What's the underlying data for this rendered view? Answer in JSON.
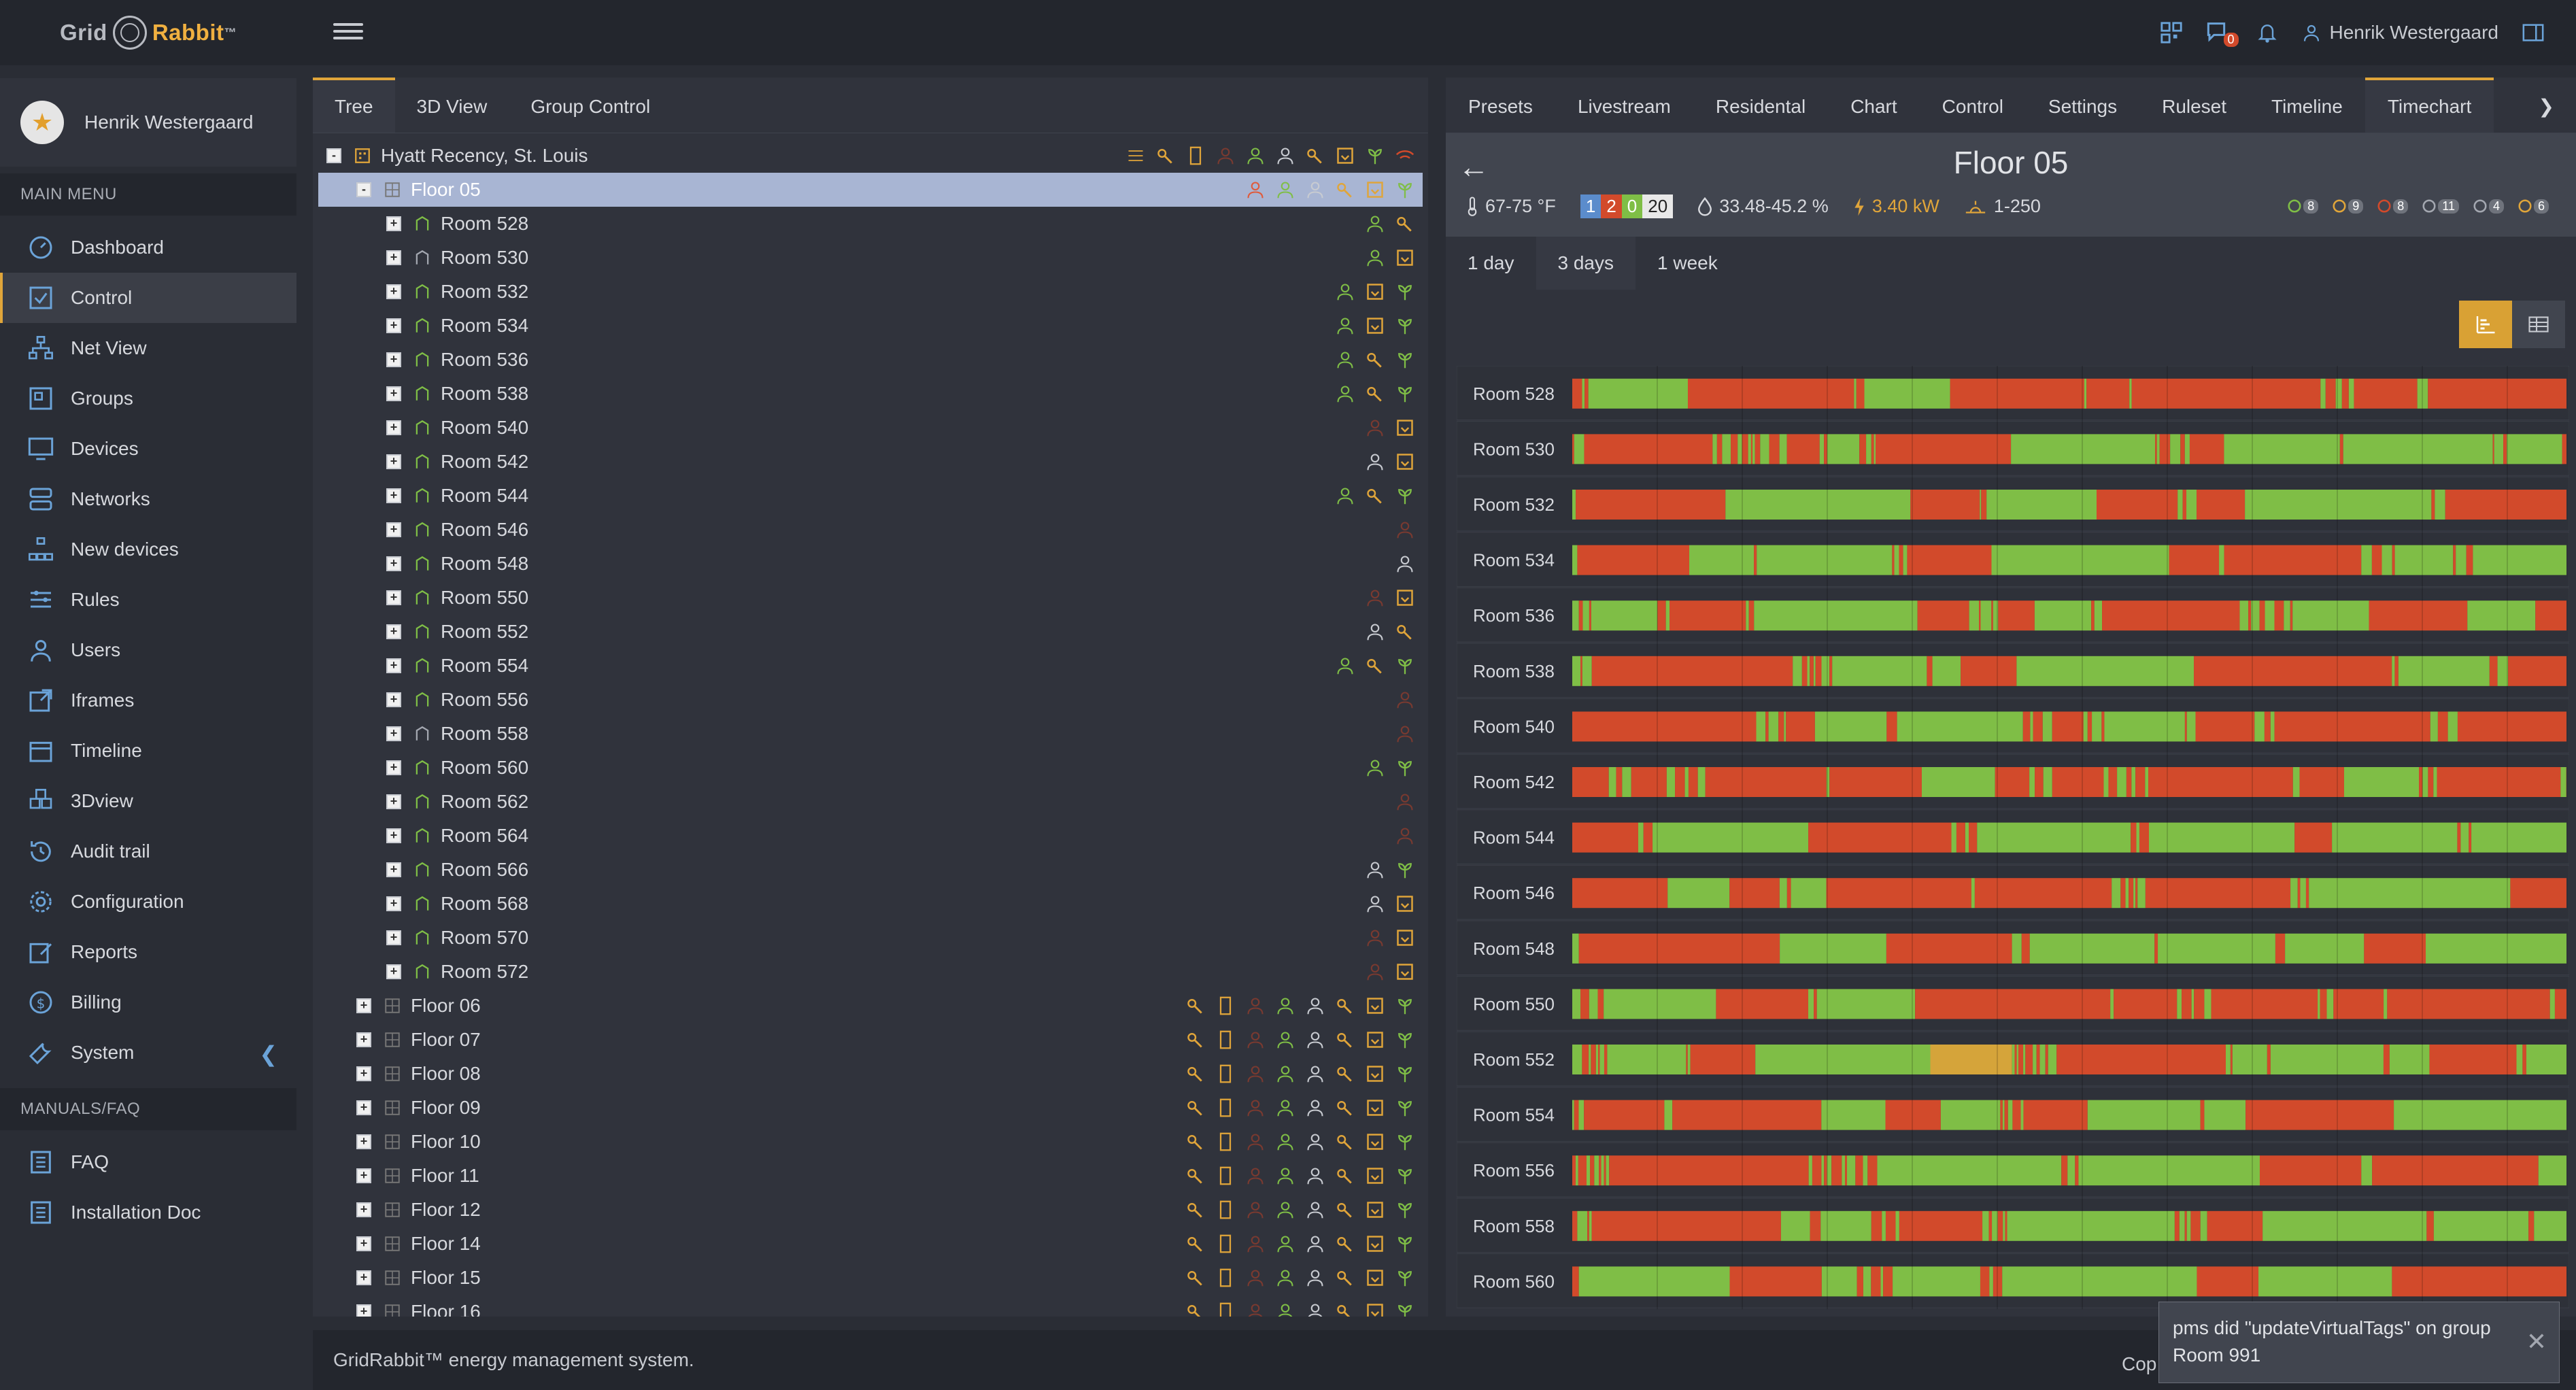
{
  "app": {
    "brand_a": "Grid",
    "brand_b": "Rabbit",
    "brand_tm": "™"
  },
  "topbar": {
    "user": "Henrik Westergaard",
    "chat_count": "0"
  },
  "sidebar": {
    "user_name": "Henrik Westergaard",
    "main_menu_title": "MAIN MENU",
    "items": [
      {
        "label": "Dashboard",
        "icon": "dashboard-icon"
      },
      {
        "label": "Control",
        "icon": "control-icon"
      },
      {
        "label": "Net View",
        "icon": "network-icon"
      },
      {
        "label": "Groups",
        "icon": "groups-icon"
      },
      {
        "label": "Devices",
        "icon": "devices-icon"
      },
      {
        "label": "Networks",
        "icon": "networks-icon"
      },
      {
        "label": "New devices",
        "icon": "new-devices-icon"
      },
      {
        "label": "Rules",
        "icon": "rules-icon"
      },
      {
        "label": "Users",
        "icon": "user-icon"
      },
      {
        "label": "Iframes",
        "icon": "iframe-icon"
      },
      {
        "label": "Timeline",
        "icon": "calendar-icon"
      },
      {
        "label": "3Dview",
        "icon": "cube-icon"
      },
      {
        "label": "Audit trail",
        "icon": "history-icon"
      },
      {
        "label": "Configuration",
        "icon": "gear-icon"
      },
      {
        "label": "Reports",
        "icon": "edit-icon"
      },
      {
        "label": "Billing",
        "icon": "dollar-icon"
      },
      {
        "label": "System",
        "icon": "wrench-icon"
      }
    ],
    "manuals_title": "MANUALS/FAQ",
    "manuals": [
      {
        "label": "FAQ",
        "icon": "document-icon"
      },
      {
        "label": "Installation Doc",
        "icon": "document-icon"
      }
    ]
  },
  "left_tabs": [
    "Tree",
    "3D View",
    "Group Control"
  ],
  "tree": {
    "root": "Hyatt Recency, St. Louis",
    "selected": "Floor 05",
    "rooms": [
      "Room 528",
      "Room 530",
      "Room 532",
      "Room 534",
      "Room 536",
      "Room 538",
      "Room 540",
      "Room 542",
      "Room 544",
      "Room 546",
      "Room 548",
      "Room 550",
      "Room 552",
      "Room 554",
      "Room 556",
      "Room 558",
      "Room 560",
      "Room 562",
      "Room 564",
      "Room 566",
      "Room 568",
      "Room 570",
      "Room 572"
    ],
    "floors": [
      "Floor 06",
      "Floor 07",
      "Floor 08",
      "Floor 09",
      "Floor 10",
      "Floor 11",
      "Floor 12",
      "Floor 14",
      "Floor 15",
      "Floor 16"
    ]
  },
  "right_tabs": [
    "Presets",
    "Livestream",
    "Residental",
    "Chart",
    "Control",
    "Settings",
    "Ruleset",
    "Timeline",
    "Timechart"
  ],
  "right_active_tab": "Timechart",
  "floor": {
    "title": "Floor 05",
    "temp": "67-75 °F",
    "badges": [
      {
        "v": "1",
        "c": "#5b8ccc"
      },
      {
        "v": "2",
        "c": "#d24a2b"
      },
      {
        "v": "0",
        "c": "#7fbe46"
      },
      {
        "v": "20",
        "c": "#e8e8e8"
      }
    ],
    "humidity": "33.48-45.2 %",
    "power": "3.40 kW",
    "light": "1-250",
    "mini_counts": [
      "8",
      "9",
      "8",
      "11",
      "4",
      "6"
    ]
  },
  "time_tabs": [
    "1 day",
    "3 days",
    "1 week"
  ],
  "time_active": "3 days",
  "chart_data": {
    "type": "table",
    "rows": [
      "Room 528",
      "Room 530",
      "Room 532",
      "Room 534",
      "Room 536",
      "Room 538",
      "Room 540",
      "Room 542",
      "Room 544",
      "Room 546",
      "Room 548",
      "Room 550",
      "Room 552",
      "Room 554",
      "Room 556",
      "Room 558",
      "Room 560"
    ],
    "colors": {
      "occupied": "#7fbe46",
      "vacant": "#d24a2b",
      "other": "#d5a43a"
    }
  },
  "footer": {
    "text": "GridRabbit™ energy management system.",
    "copyright": "Cop"
  },
  "toast": {
    "line1": "pms did \"updateVirtualTags\" on group",
    "line2": "Room 991"
  }
}
